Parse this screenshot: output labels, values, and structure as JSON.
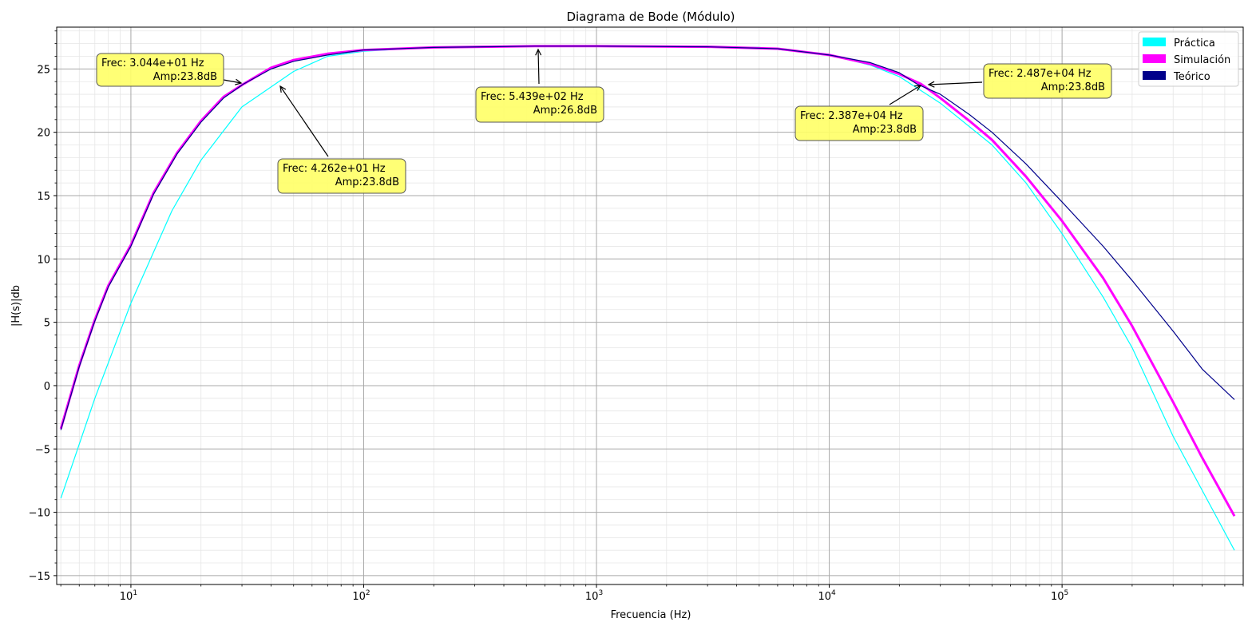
{
  "chart_data": {
    "type": "line",
    "title": "Diagrama de Bode (Módulo)",
    "xlabel": "Frecuencia (Hz)",
    "ylabel": "|H(s)|db",
    "xscale": "log",
    "xlim": [
      4.8,
      600000
    ],
    "ylim": [
      -15.7,
      28.3
    ],
    "yticks": [
      -15,
      -10,
      -5,
      0,
      5,
      10,
      15,
      20,
      25
    ],
    "xticks": [
      {
        "value": 10,
        "label": "10",
        "exp": "1"
      },
      {
        "value": 100,
        "label": "10",
        "exp": "2"
      },
      {
        "value": 1000,
        "label": "10",
        "exp": "3"
      },
      {
        "value": 10000,
        "label": "10",
        "exp": "4"
      },
      {
        "value": 100000,
        "label": "10",
        "exp": "5"
      }
    ],
    "grid": true,
    "legend_position": "top-right",
    "series": [
      {
        "name": "Práctica",
        "color": "#00ffff",
        "width": 1.2,
        "x": [
          5,
          7,
          10,
          15,
          20,
          30,
          50,
          70,
          100,
          200,
          500,
          1000,
          2000,
          5000,
          10000,
          15000,
          20000,
          30000,
          50000,
          70000,
          100000,
          150000,
          200000,
          300000,
          550000
        ],
        "y": [
          -8.9,
          -1,
          6.5,
          13.8,
          17.8,
          22,
          24.8,
          26,
          26.4,
          26.7,
          26.8,
          26.8,
          26.8,
          26.7,
          26.1,
          25.3,
          24.4,
          22.3,
          19,
          16,
          12,
          7,
          3,
          -4,
          -13
        ]
      },
      {
        "name": "Simulación",
        "color": "#ff00ff",
        "width": 3,
        "x": [
          5,
          6,
          7,
          8,
          10,
          12.5,
          15.8,
          20,
          25,
          30.4,
          40,
          50,
          70,
          100,
          200,
          544,
          1000,
          3000,
          6000,
          10000,
          15000,
          20000,
          24870,
          30000,
          40000,
          50000,
          70000,
          100000,
          150000,
          200000,
          300000,
          400000,
          550000
        ],
        "y": [
          -3.4,
          1.6,
          5.2,
          7.9,
          11.1,
          15.2,
          18.4,
          20.9,
          22.8,
          23.8,
          25.1,
          25.7,
          26.2,
          26.5,
          26.7,
          26.8,
          26.8,
          26.75,
          26.6,
          26.1,
          25.4,
          24.6,
          23.8,
          22.7,
          20.9,
          19.4,
          16.5,
          13,
          8.5,
          4.7,
          -1.3,
          -5.7,
          -10.3
        ]
      },
      {
        "name": "Teórico",
        "color": "#00008b",
        "width": 1.2,
        "x": [
          5,
          6,
          7,
          8,
          10,
          12.5,
          15.8,
          20,
          25,
          30.4,
          40,
          50,
          70,
          100,
          200,
          544,
          1000,
          3000,
          6000,
          10000,
          15000,
          20000,
          23870,
          30000,
          40000,
          50000,
          70000,
          100000,
          150000,
          200000,
          300000,
          400000,
          550000
        ],
        "y": [
          -3.5,
          1.5,
          5.1,
          7.8,
          11,
          15.1,
          18.3,
          20.8,
          22.7,
          23.8,
          25,
          25.6,
          26.1,
          26.5,
          26.7,
          26.8,
          26.8,
          26.75,
          26.6,
          26.1,
          25.5,
          24.7,
          23.8,
          23,
          21.4,
          20,
          17.5,
          14.5,
          11,
          8.3,
          4.3,
          1.3,
          -1.1
        ]
      }
    ],
    "annotations": [
      {
        "line1": "Frec: 3.044e+01  Hz",
        "line2": "Amp:23.8dB",
        "x": 30.44,
        "y": 23.8
      },
      {
        "line1": "Frec: 4.262e+01  Hz",
        "line2": "Amp:23.8dB",
        "x": 42.62,
        "y": 23.8
      },
      {
        "line1": "Frec: 5.439e+02  Hz",
        "line2": "Amp:26.8dB",
        "x": 543.9,
        "y": 26.8
      },
      {
        "line1": "Frec: 2.387e+04  Hz",
        "line2": "Amp:23.8dB",
        "x": 23870,
        "y": 23.8
      },
      {
        "line1": "Frec: 2.487e+04  Hz",
        "line2": "Amp:23.8dB",
        "x": 24870,
        "y": 23.8
      }
    ]
  }
}
